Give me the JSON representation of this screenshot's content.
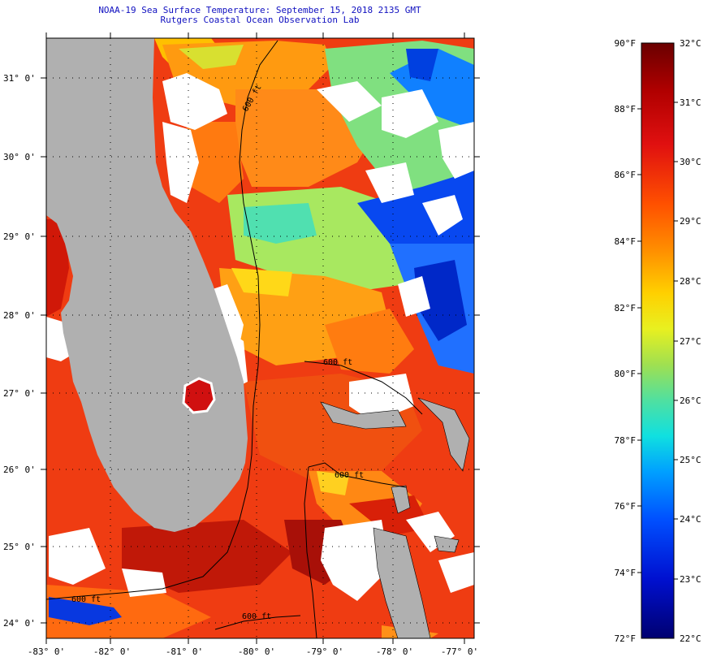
{
  "header": {
    "title_line1": "NOAA-19 Sea Surface Temperature:  September 15, 2018 2135 GMT",
    "title_line2": "Rutgers Coastal Ocean Observation Lab"
  },
  "map": {
    "lat_labels": [
      "31° 0'",
      "30° 0'",
      "29° 0'",
      "28° 0'",
      "27° 0'",
      "26° 0'",
      "25° 0'",
      "24° 0'"
    ],
    "lon_labels": [
      "-83° 0'",
      "-82° 0'",
      "-81° 0'",
      "-80° 0'",
      "-79° 0'",
      "-78° 0'",
      "-77° 0'"
    ],
    "isobath_labels": [
      "600 ft",
      "600 ft",
      "600 ft",
      "600 ft",
      "600 ft"
    ],
    "colors": {
      "land": "#b0b0b0",
      "cloud": "#ffffff",
      "ocean_warm": "#ee3a10"
    }
  },
  "colorbar": {
    "fahrenheit_labels": [
      "90°F",
      "88°F",
      "86°F",
      "84°F",
      "82°F",
      "80°F",
      "78°F",
      "76°F",
      "74°F",
      "72°F"
    ],
    "celsius_labels": [
      "32°C",
      "31°C",
      "30°C",
      "29°C",
      "28°C",
      "27°C",
      "26°C",
      "25°C",
      "24°C",
      "23°C",
      "22°C"
    ]
  }
}
